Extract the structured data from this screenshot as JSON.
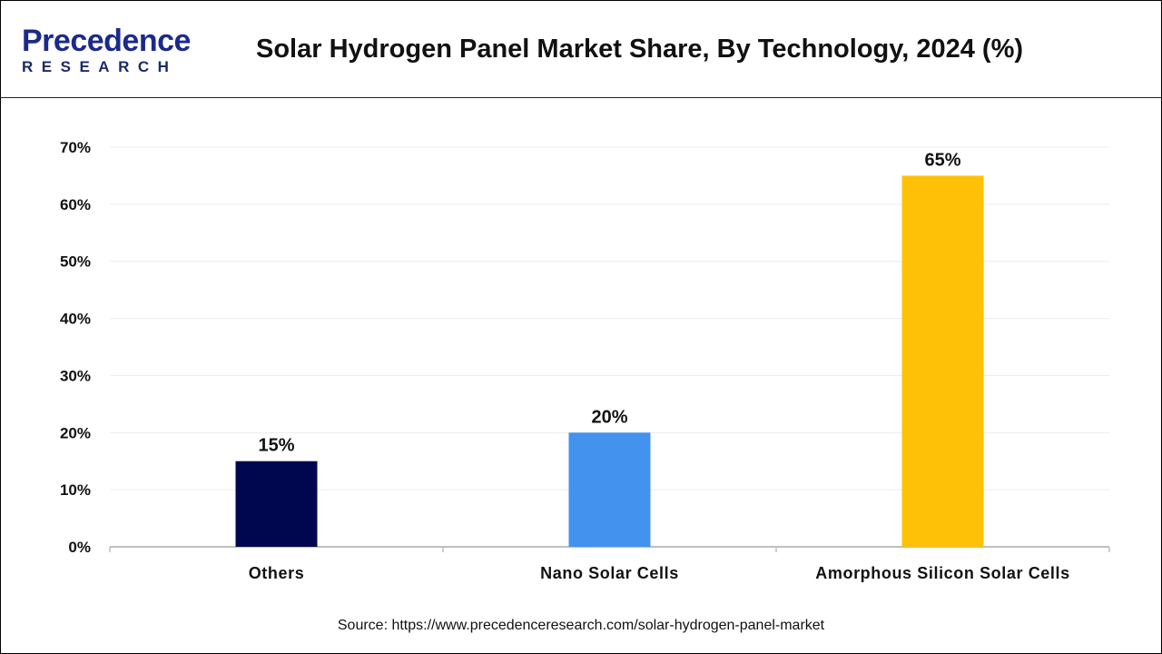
{
  "header": {
    "logo_line1": "Precedence",
    "logo_line2": "RESEARCH",
    "title": "Solar Hydrogen Panel Market Share, By Technology, 2024 (%)"
  },
  "chart_data": {
    "type": "bar",
    "title": "Solar Hydrogen Panel Market Share, By Technology, 2024 (%)",
    "categories": [
      "Others",
      "Nano Solar Cells",
      "Amorphous Silicon Solar Cells"
    ],
    "values": [
      15,
      20,
      65
    ],
    "data_labels": [
      "15%",
      "20%",
      "65%"
    ],
    "colors": [
      "#00074f",
      "#4393ee",
      "#ffc107"
    ],
    "ylim": [
      0,
      70
    ],
    "yticks": [
      "0%",
      "10%",
      "20%",
      "30%",
      "40%",
      "50%",
      "60%",
      "70%"
    ],
    "grid": true,
    "xlabel": "",
    "ylabel": ""
  },
  "footer": {
    "source": "Source: https://www.precedenceresearch.com/solar-hydrogen-panel-market"
  }
}
